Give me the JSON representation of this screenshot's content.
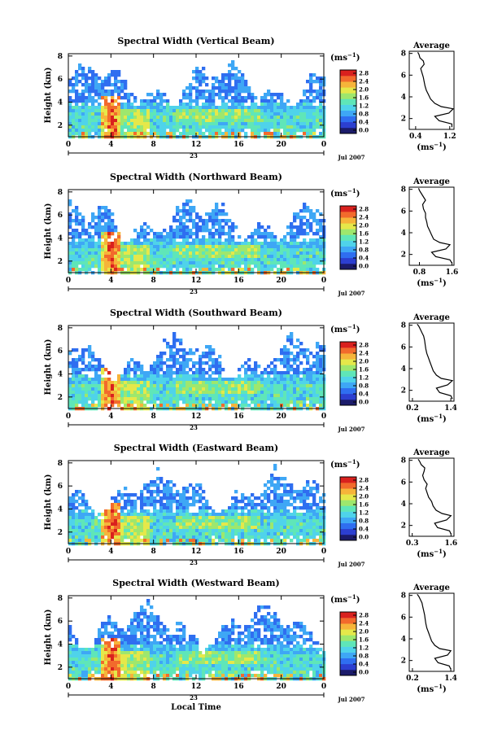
{
  "figure": {
    "date_label": "Jul 2007",
    "day_label": "23",
    "bottom_xlabel": "Local Time",
    "ylabel": "Height (km)",
    "cbar_unit": "(ms",
    "cbar_unit_exp": "−1",
    "cbar_unit_close": ")",
    "avg_title": "Average",
    "avg_xlabel": "(ms",
    "avg_xlabel_exp": "−1",
    "avg_xlabel_close": ")"
  },
  "chart_data": [
    {
      "type": "heatmap",
      "title": "Spectral Width (Vertical Beam)",
      "xlabel": "",
      "ylabel": "Height (km)",
      "xticks": [
        "0",
        "4",
        "8",
        "12",
        "16",
        "20",
        "0"
      ],
      "yticks": [
        "2",
        "4",
        "6",
        "8"
      ],
      "xlim": [
        0,
        24
      ],
      "ylim": [
        1,
        8.2
      ],
      "colorbar": {
        "unit": "ms^-1",
        "ticks": [
          "0.0",
          "0.4",
          "0.8",
          "1.2",
          "1.6",
          "2.0",
          "2.4",
          "2.8"
        ]
      },
      "profile": {
        "title": "Average",
        "xlabel": "(ms^-1)",
        "xticks": [
          "0.4",
          "1.2"
        ],
        "xlim": [
          0.25,
          1.3
        ],
        "ylim": [
          1,
          8.2
        ],
        "x": [
          1.25,
          1.25,
          0.95,
          0.85,
          1.18,
          1.28,
          1.0,
          0.85,
          0.75,
          0.7,
          0.65,
          0.62,
          0.6,
          0.58,
          0.55,
          0.52,
          0.6,
          0.58,
          0.5,
          0.48,
          0.45
        ],
        "y": [
          1.2,
          1.5,
          1.8,
          2.2,
          2.5,
          2.9,
          3.1,
          3.4,
          3.8,
          4.2,
          4.6,
          5.0,
          5.4,
          5.8,
          6.2,
          6.6,
          7.0,
          7.3,
          7.6,
          7.9,
          8.1
        ]
      }
    },
    {
      "type": "heatmap",
      "title": "Spectral Width (Northward Beam)",
      "xlabel": "",
      "ylabel": "Height (km)",
      "xticks": [
        "0",
        "4",
        "8",
        "12",
        "16",
        "20",
        "0"
      ],
      "yticks": [
        "2",
        "4",
        "6",
        "8"
      ],
      "xlim": [
        0,
        24
      ],
      "ylim": [
        1,
        8.2
      ],
      "colorbar": {
        "unit": "ms^-1",
        "ticks": [
          "0.0",
          "0.4",
          "0.8",
          "1.2",
          "1.6",
          "2.0",
          "2.4",
          "2.8"
        ]
      },
      "profile": {
        "title": "Average",
        "xlabel": "(ms^-1)",
        "xticks": [
          "0.8",
          "1.6"
        ],
        "xlim": [
          0.55,
          1.65
        ],
        "ylim": [
          1,
          8.2
        ],
        "x": [
          1.6,
          1.55,
          1.2,
          1.1,
          1.45,
          1.55,
          1.3,
          1.15,
          1.1,
          1.05,
          1.0,
          0.98,
          0.95,
          0.95,
          0.9,
          0.88,
          0.95,
          0.9,
          0.85,
          0.8,
          0.78
        ],
        "y": [
          1.2,
          1.5,
          1.8,
          2.2,
          2.5,
          2.9,
          3.1,
          3.4,
          3.8,
          4.2,
          4.6,
          5.0,
          5.4,
          5.8,
          6.2,
          6.6,
          7.0,
          7.3,
          7.6,
          7.9,
          8.1
        ]
      }
    },
    {
      "type": "heatmap",
      "title": "Spectral Width (Southward Beam)",
      "xlabel": "",
      "ylabel": "Height (km)",
      "xticks": [
        "0",
        "4",
        "8",
        "12",
        "16",
        "20",
        "0"
      ],
      "yticks": [
        "2",
        "4",
        "6",
        "8"
      ],
      "xlim": [
        0,
        24
      ],
      "ylim": [
        1,
        8.2
      ],
      "colorbar": {
        "unit": "ms^-1",
        "ticks": [
          "0.0",
          "0.4",
          "0.8",
          "1.2",
          "1.6",
          "2.0",
          "2.4",
          "2.8"
        ]
      },
      "profile": {
        "title": "Average",
        "xlabel": "(ms^-1)",
        "xticks": [
          "0.2",
          "1.4"
        ],
        "xlim": [
          0.1,
          1.5
        ],
        "ylim": [
          1,
          8.2
        ],
        "x": [
          1.45,
          1.4,
          1.05,
          0.95,
          1.3,
          1.45,
          1.1,
          0.95,
          0.85,
          0.8,
          0.75,
          0.7,
          0.65,
          0.62,
          0.6,
          0.58,
          0.55,
          0.5,
          0.45,
          0.4,
          0.35
        ],
        "y": [
          1.2,
          1.5,
          1.8,
          2.2,
          2.5,
          2.9,
          3.1,
          3.4,
          3.8,
          4.2,
          4.6,
          5.0,
          5.4,
          5.8,
          6.2,
          6.6,
          7.0,
          7.3,
          7.6,
          7.9,
          8.1
        ]
      }
    },
    {
      "type": "heatmap",
      "title": "Spectral Width (Eastward Beam)",
      "xlabel": "",
      "ylabel": "Height (km)",
      "xticks": [
        "0",
        "4",
        "8",
        "12",
        "16",
        "20",
        "0"
      ],
      "yticks": [
        "2",
        "4",
        "6",
        "8"
      ],
      "xlim": [
        0,
        24
      ],
      "ylim": [
        1,
        8.2
      ],
      "colorbar": {
        "unit": "ms^-1",
        "ticks": [
          "0.0",
          "0.4",
          "0.8",
          "1.2",
          "1.6",
          "2.0",
          "2.4",
          "2.8"
        ]
      },
      "profile": {
        "title": "Average",
        "xlabel": "(ms^-1)",
        "xticks": [
          "0.3",
          "1.6"
        ],
        "xlim": [
          0.2,
          1.7
        ],
        "ylim": [
          1,
          8.2
        ],
        "x": [
          1.6,
          1.55,
          1.15,
          1.05,
          1.45,
          1.6,
          1.3,
          1.1,
          1.0,
          0.95,
          0.85,
          0.8,
          0.75,
          0.8,
          0.7,
          0.65,
          0.7,
          0.72,
          0.6,
          0.55,
          0.5
        ],
        "y": [
          1.2,
          1.5,
          1.8,
          2.2,
          2.5,
          2.9,
          3.1,
          3.4,
          3.8,
          4.2,
          4.6,
          5.0,
          5.4,
          5.8,
          6.2,
          6.6,
          7.0,
          7.3,
          7.6,
          7.9,
          8.1
        ]
      }
    },
    {
      "type": "heatmap",
      "title": "Spectral Width (Westward Beam)",
      "xlabel": "Local Time",
      "ylabel": "Height (km)",
      "xticks": [
        "0",
        "4",
        "8",
        "12",
        "16",
        "20",
        "0"
      ],
      "yticks": [
        "2",
        "4",
        "6",
        "8"
      ],
      "xlim": [
        0,
        24
      ],
      "ylim": [
        1,
        8.2
      ],
      "colorbar": {
        "unit": "ms^-1",
        "ticks": [
          "0.0",
          "0.4",
          "0.8",
          "1.2",
          "1.6",
          "2.0",
          "2.4",
          "2.8"
        ]
      },
      "profile": {
        "title": "Average",
        "xlabel": "(ms^-1)",
        "xticks": [
          "0.2",
          "1.4"
        ],
        "xlim": [
          0.1,
          1.5
        ],
        "ylim": [
          1,
          8.2
        ],
        "x": [
          1.4,
          1.35,
          1.0,
          0.9,
          1.3,
          1.4,
          1.05,
          0.9,
          0.8,
          0.75,
          0.7,
          0.65,
          0.62,
          0.6,
          0.58,
          0.55,
          0.52,
          0.5,
          0.45,
          0.4,
          0.35
        ],
        "y": [
          1.2,
          1.5,
          1.8,
          2.2,
          2.5,
          2.9,
          3.1,
          3.4,
          3.8,
          4.2,
          4.6,
          5.0,
          5.4,
          5.8,
          6.2,
          6.6,
          7.0,
          7.3,
          7.6,
          7.9,
          8.1
        ]
      }
    }
  ],
  "colors": {
    "colormap": [
      "#1b1b6a",
      "#2c3fd0",
      "#2f6ef0",
      "#3ea7f5",
      "#4fd3ea",
      "#5fe6b8",
      "#9ee76d",
      "#e5e84a",
      "#f6b43a",
      "#f26a2c",
      "#d9211e"
    ],
    "axis": "#000000",
    "background": "#ffffff"
  }
}
